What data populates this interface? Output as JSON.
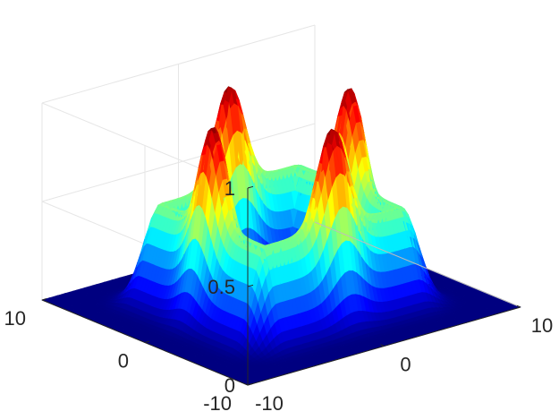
{
  "chart_data": {
    "type": "surface",
    "colormap": "jet",
    "title": "",
    "xlabel": "",
    "ylabel": "",
    "zlabel": "",
    "xlim": [
      -10,
      10
    ],
    "ylim": [
      -10,
      10
    ],
    "zlim": [
      0,
      1
    ],
    "x_ticks": [
      {
        "value": -10,
        "label": "-10"
      },
      {
        "value": 0,
        "label": "0"
      },
      {
        "value": 10,
        "label": "10"
      }
    ],
    "y_ticks": [
      {
        "value": -10,
        "label": "-10"
      },
      {
        "value": 0,
        "label": "0"
      },
      {
        "value": 10,
        "label": "10"
      }
    ],
    "z_ticks": [
      {
        "value": 0,
        "label": "0"
      },
      {
        "value": 0.5,
        "label": "0.5"
      },
      {
        "value": 1,
        "label": "1"
      }
    ],
    "grid": true,
    "surface": {
      "description": "square ring ridge with a peak at the middle of each side",
      "ridge_half_width": 5,
      "ridge_height": 0.5,
      "peaks": [
        {
          "x": 0,
          "y": -5,
          "z": 1
        },
        {
          "x": 5,
          "y": 0,
          "z": 1
        },
        {
          "x": 0,
          "y": 5,
          "z": 1
        },
        {
          "x": -5,
          "y": 0,
          "z": 1
        }
      ],
      "floor_z": 0
    }
  }
}
